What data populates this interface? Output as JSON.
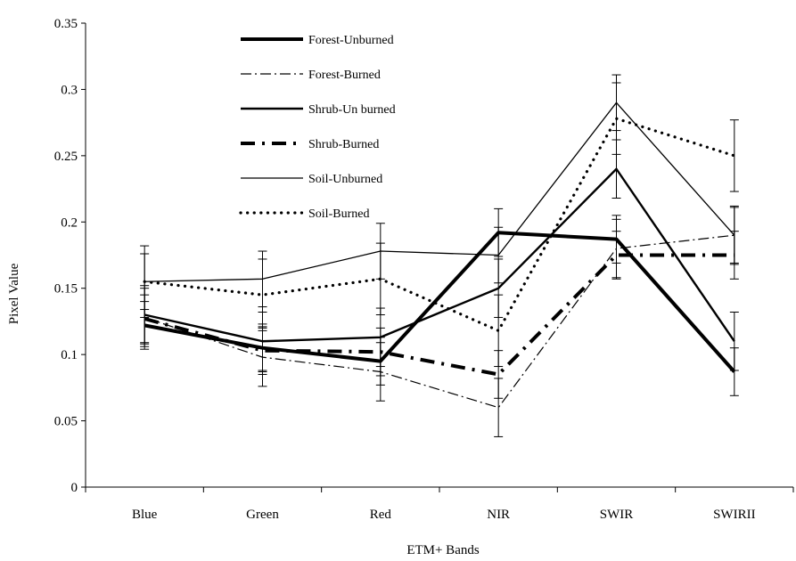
{
  "chart_data": {
    "type": "line",
    "title": "",
    "xlabel": "ETM+ Bands",
    "ylabel": "Pixel Value",
    "categories": [
      "Blue",
      "Green",
      "Red",
      "NIR",
      "SWIR",
      "SWIRII"
    ],
    "ylim": [
      0,
      0.35
    ],
    "yticks": [
      0,
      0.05,
      0.1,
      0.15,
      0.2,
      0.25,
      0.3,
      0.35
    ],
    "ytick_labels": [
      "0",
      "0.05",
      "0.1",
      "0.15",
      "0.2",
      "0.25",
      "0.3",
      "0.35"
    ],
    "grid": false,
    "legend_position": "top-left",
    "error_bars": true,
    "series": [
      {
        "name": "Forest-Unburned",
        "style": "thick-solid",
        "values": [
          0.122,
          0.105,
          0.095,
          0.192,
          0.187,
          0.087
        ],
        "errors": [
          0.018,
          0.018,
          0.018,
          0.018,
          0.018,
          0.018
        ]
      },
      {
        "name": "Forest-Burned",
        "style": "dash-dot",
        "values": [
          0.128,
          0.098,
          0.087,
          0.06,
          0.18,
          0.19
        ],
        "errors": [
          0.022,
          0.022,
          0.022,
          0.022,
          0.022,
          0.022
        ]
      },
      {
        "name": "Shrub-Un burned",
        "style": "medium-solid",
        "values": [
          0.13,
          0.11,
          0.113,
          0.15,
          0.24,
          0.11
        ],
        "errors": [
          0.022,
          0.022,
          0.022,
          0.022,
          0.022,
          0.022
        ]
      },
      {
        "name": "Shrub-Burned",
        "style": "thick-dash-dot",
        "values": [
          0.127,
          0.103,
          0.102,
          0.085,
          0.175,
          0.175
        ],
        "errors": [
          0.018,
          0.018,
          0.018,
          0.018,
          0.018,
          0.018
        ]
      },
      {
        "name": "Soil-Unburned",
        "style": "thin-solid",
        "values": [
          0.155,
          0.157,
          0.178,
          0.175,
          0.29,
          0.19
        ],
        "errors": [
          0.021,
          0.021,
          0.021,
          0.021,
          0.021,
          0.021
        ]
      },
      {
        "name": "Soil-Burned",
        "style": "dotted",
        "values": [
          0.155,
          0.145,
          0.157,
          0.118,
          0.278,
          0.25
        ],
        "errors": [
          0.027,
          0.027,
          0.027,
          0.027,
          0.027,
          0.027
        ]
      }
    ]
  }
}
